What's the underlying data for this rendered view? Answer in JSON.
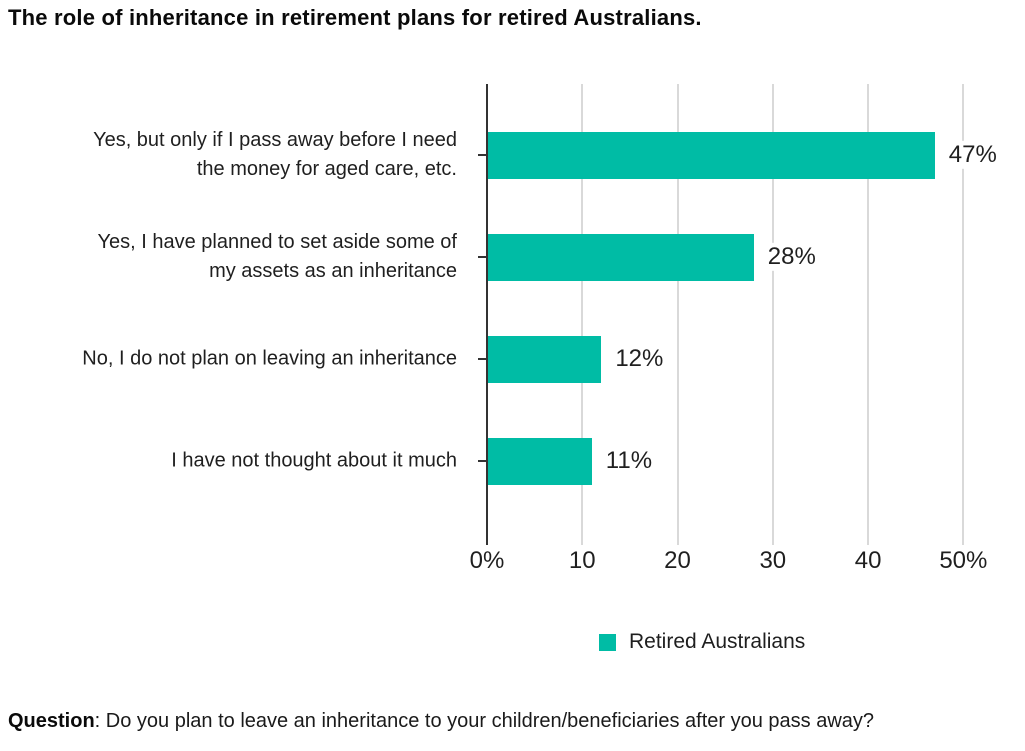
{
  "title": "The role of inheritance in retirement plans for retired Australians.",
  "chart_data": {
    "type": "bar",
    "orientation": "horizontal",
    "title": "The role of inheritance in retirement plans for retired Australians.",
    "categories": [
      "Yes, but only if I pass away before I need the money for aged care, etc.",
      "Yes, I have planned to set aside some of my assets as an inheritance",
      "No, I do not plan on leaving an inheritance",
      "I have not thought about it much"
    ],
    "category_lines": [
      [
        "Yes, but only if I pass away before I need",
        "the money for aged care, etc."
      ],
      [
        "Yes, I have planned to set aside some of",
        "my assets as an inheritance"
      ],
      [
        "No, I do not plan on leaving an inheritance"
      ],
      [
        "I have not thought about it much"
      ]
    ],
    "series": [
      {
        "name": "Retired Australians",
        "values": [
          47,
          28,
          12,
          11
        ]
      }
    ],
    "value_labels": [
      "47%",
      "28%",
      "12%",
      "11%"
    ],
    "xticks": [
      {
        "value": 0,
        "label": "0%"
      },
      {
        "value": 10,
        "label": "10"
      },
      {
        "value": 20,
        "label": "20"
      },
      {
        "value": 30,
        "label": "30"
      },
      {
        "value": 40,
        "label": "40"
      },
      {
        "value": 50,
        "label": "50%"
      }
    ],
    "xlim": [
      0,
      55
    ],
    "grid": "vertical-gridlines",
    "legend_position": "bottom",
    "bar_color": "#00bca5"
  },
  "legend": {
    "label": "Retired Australians",
    "swatch_color": "#00bca5"
  },
  "question": {
    "bold_label": "Question",
    "text": ": Do you plan to leave an inheritance to your children/beneficiaries after you pass away?"
  },
  "colors": {
    "bar": "#00bca5",
    "gridline": "#d9d9d9",
    "axis": "#333333",
    "text": "#1f1f1f"
  }
}
